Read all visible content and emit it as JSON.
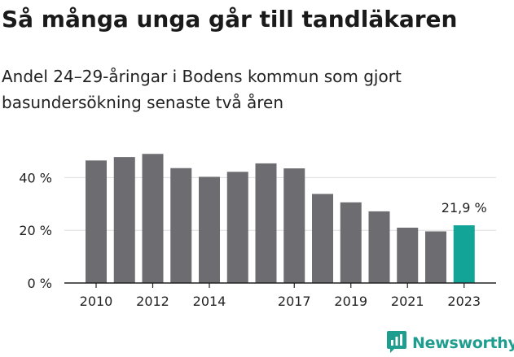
{
  "header": {
    "title": "Så många unga går till tandläkaren",
    "subtitle": "Andel 24–29-åringar i Bodens kommun som gjort basundersökning senaste två åren"
  },
  "brand": {
    "name": "Newsworthy",
    "color": "#1f9e8f",
    "icon": "chat-bar-chart-icon"
  },
  "chart_data": {
    "type": "bar",
    "title": "Så många unga går till tandläkaren",
    "subtitle": "Andel 24–29-åringar i Bodens kommun som gjort basundersökning senaste två åren",
    "xlabel": "",
    "ylabel": "",
    "categories": [
      "2010",
      "2011",
      "2012",
      "2013",
      "2014",
      "2015",
      "2016",
      "2017",
      "2018",
      "2019",
      "2020",
      "2021",
      "2022",
      "2023"
    ],
    "x_tick_labels": [
      "2010",
      "2012",
      "2014",
      "2017",
      "2019",
      "2021",
      "2023"
    ],
    "values": [
      46.5,
      47.8,
      49.0,
      43.6,
      40.3,
      42.2,
      45.4,
      43.5,
      33.8,
      30.6,
      27.2,
      21.0,
      19.6,
      21.9
    ],
    "ylim": [
      0,
      50
    ],
    "y_ticks": [
      0,
      20,
      40
    ],
    "y_tick_labels": [
      "0 %",
      "20 %",
      "40 %"
    ],
    "highlight_index": 13,
    "highlight_label": "21,9 %",
    "grid": true,
    "colors": {
      "bar": "#6d6c71",
      "highlight": "#12a597",
      "grid": "#dddddd",
      "axis": "#222222"
    }
  }
}
